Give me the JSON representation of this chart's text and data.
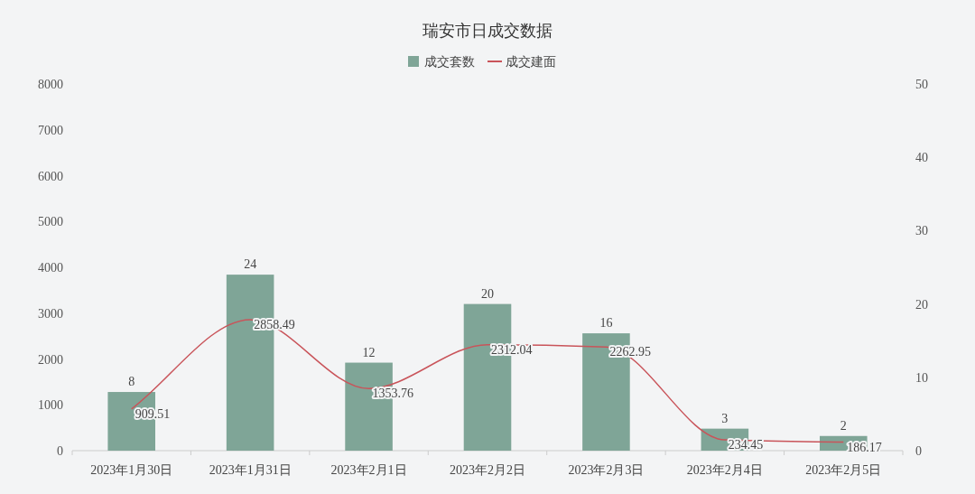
{
  "chart_data": {
    "type": "bar",
    "title": "瑞安市日成交数据",
    "categories": [
      "2023年1月30日",
      "2023年1月31日",
      "2023年2月1日",
      "2023年2月2日",
      "2023年2月3日",
      "2023年2月4日",
      "2023年2月5日"
    ],
    "series": [
      {
        "name": "成交套数",
        "axis": "y2",
        "color": "#7fa597",
        "values": [
          8,
          24,
          12,
          20,
          16,
          3,
          2
        ]
      },
      {
        "name": "成交建面",
        "type": "line",
        "color": "#c9545a",
        "values": [
          909.51,
          2858.49,
          1353.76,
          2312.04,
          2262.95,
          234.45,
          186.17
        ]
      }
    ],
    "ylim": [
      0,
      8000
    ],
    "yticks": [
      0,
      1000,
      2000,
      3000,
      4000,
      5000,
      6000,
      7000,
      8000
    ],
    "y2lim": [
      0,
      50
    ],
    "y2ticks": [
      0,
      10,
      20,
      30,
      40,
      50
    ],
    "data_labels": true,
    "legend": "top",
    "grid": false,
    "marker": "none",
    "line_style": "solid"
  }
}
